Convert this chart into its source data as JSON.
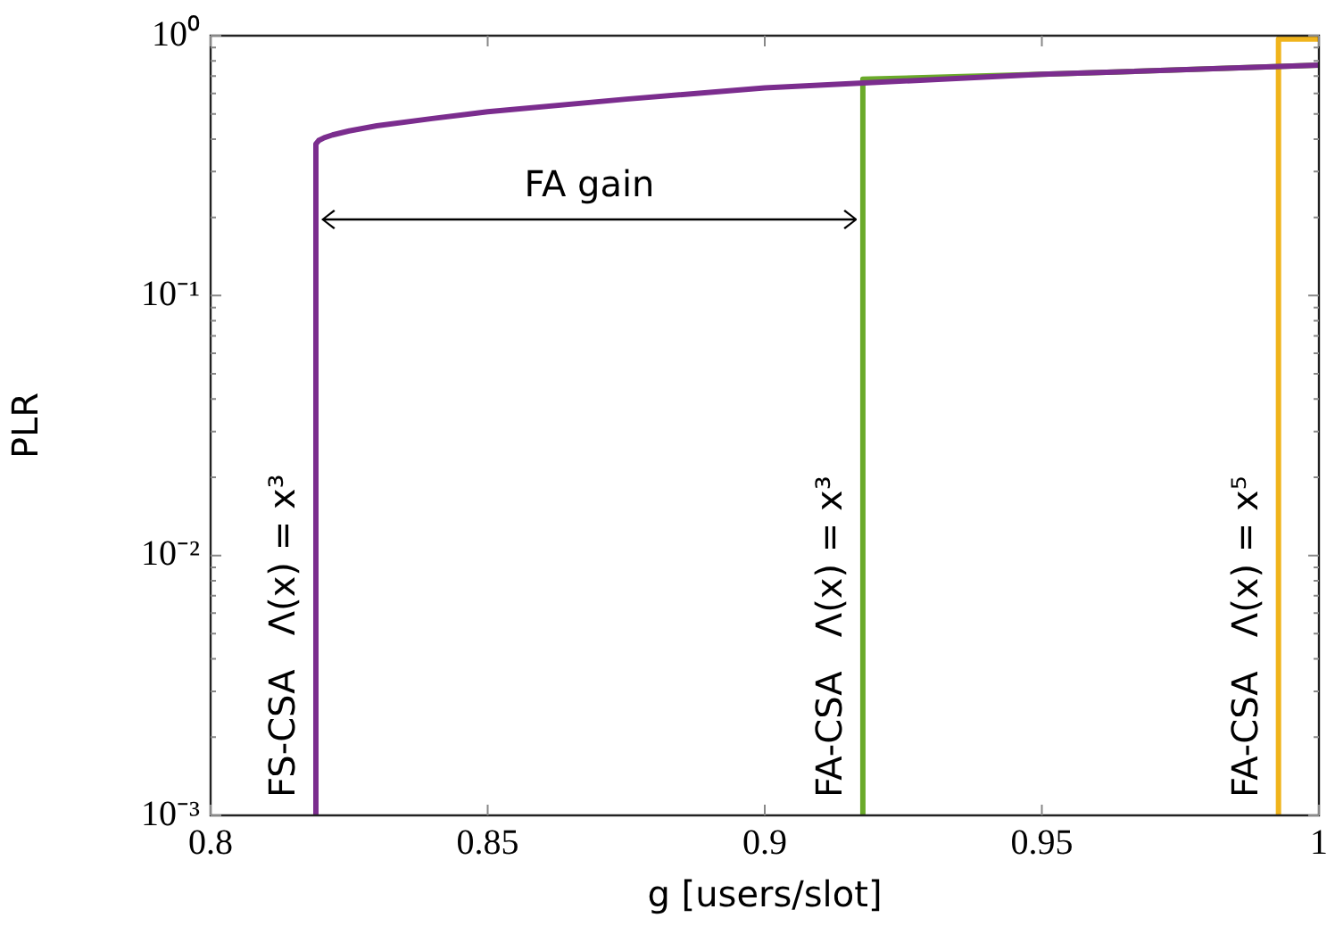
{
  "chart_data": {
    "type": "line",
    "xlabel": "g [users/slot]",
    "ylabel": "PLR",
    "series": [
      {
        "name": "FS-CSA   Λ(x) = x³",
        "color": "#7b2d8e",
        "x": [
          0.819,
          0.819,
          0.8195,
          0.8205,
          0.822,
          0.825,
          0.83,
          0.84,
          0.85,
          0.875,
          0.9,
          0.95,
          1
        ],
        "values": [
          0.001,
          0.383,
          0.395,
          0.405,
          0.415,
          0.43,
          0.45,
          0.48,
          0.51,
          0.57,
          0.63,
          0.71,
          0.77
        ]
      },
      {
        "name": "FA-CSA   Λ(x) = x³",
        "color": "#6aaa2a",
        "x": [
          0.9177,
          0.9177,
          0.95,
          1
        ],
        "values": [
          0.001,
          0.68,
          0.71,
          0.77
        ]
      },
      {
        "name": "FA-CSA   Λ(x) = x⁵",
        "color": "#f0b41c",
        "x": [
          0.9927,
          0.9927,
          1
        ],
        "values": [
          0.001,
          0.97,
          0.97
        ]
      }
    ],
    "xlim": [
      0.8,
      1
    ],
    "xticks": [
      0.8,
      0.85,
      0.9,
      0.95,
      1
    ],
    "ylim": [
      0.001,
      1
    ],
    "yticks": [
      {
        "value": 0.001,
        "label": "10⁻³"
      },
      {
        "value": 0.01,
        "label": "10⁻²"
      },
      {
        "value": 0.1,
        "label": "10⁻¹"
      },
      {
        "value": 1,
        "label": "10⁰"
      }
    ],
    "log": "y",
    "grid": false,
    "legend": false,
    "marker": "none",
    "line_style": "solid",
    "annotations": [
      "FA gain"
    ]
  }
}
